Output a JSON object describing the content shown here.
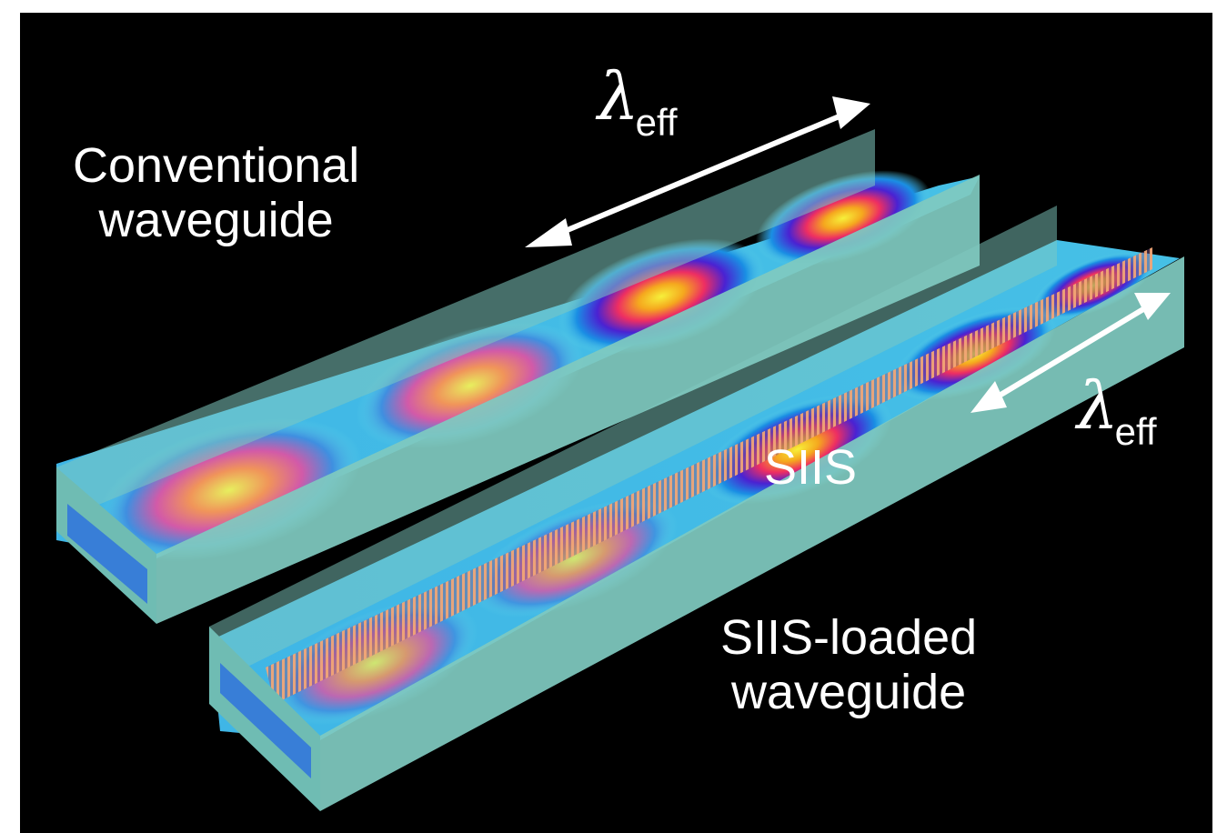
{
  "labels": {
    "conventional_line1": "Conventional",
    "conventional_line2": "waveguide",
    "siis_loaded_line1": "SIIS-loaded",
    "siis_loaded_line2": "waveguide",
    "siis": "SIIS",
    "lambda_symbol": "λ",
    "lambda_subscript": "eff"
  },
  "colors": {
    "background": "#000000",
    "frame": "#ffffff",
    "waveguide_wall": "#7fc9bf",
    "field_low": "#1f8fe0",
    "field_mid": "#3a1fc8",
    "field_high": "#e0245e",
    "field_peak": "#f4e83a",
    "siis_structure": "#e08a5a",
    "arrow": "#ffffff"
  }
}
